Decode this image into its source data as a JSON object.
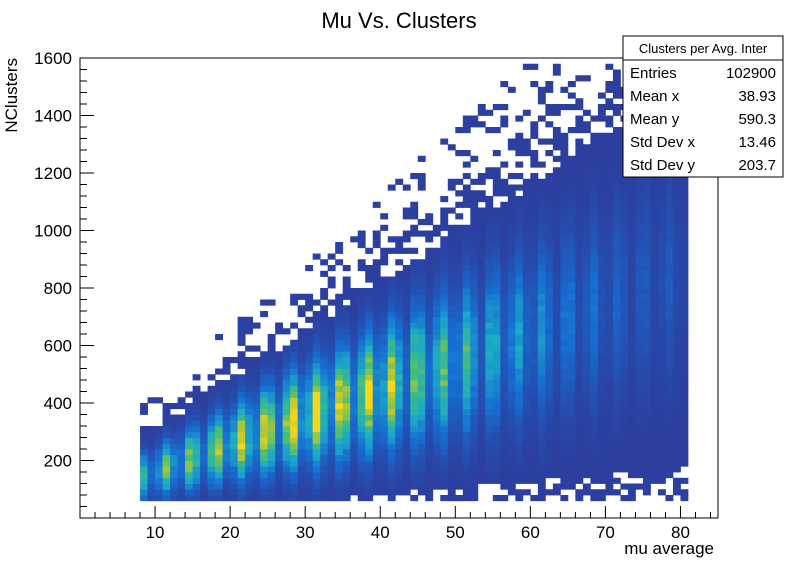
{
  "chart_data": {
    "type": "heatmap",
    "title": "Mu Vs. Clusters",
    "xlabel": "mu average",
    "ylabel": "NClusters",
    "xlim": [
      0,
      85
    ],
    "ylim": [
      0,
      1600
    ],
    "x_ticks": [
      10,
      20,
      30,
      40,
      50,
      60,
      70,
      80
    ],
    "y_ticks": [
      200,
      400,
      600,
      800,
      1000,
      1200,
      1400,
      1600
    ],
    "x_bin_width": 1,
    "y_bin_width": 20,
    "colors": {
      "background": "#ffffff",
      "low": "#2c3e9e",
      "mid": "#1b9ec3",
      "high": "#f7d21e"
    },
    "stats_box": {
      "title": "Clusters per Avg. Inter",
      "rows": [
        {
          "label": "Entries",
          "value": "102900"
        },
        {
          "label": "Mean x",
          "value": "38.93"
        },
        {
          "label": "Mean y",
          "value": "590.3"
        },
        {
          "label": "Std Dev x",
          "value": "13.46"
        },
        {
          "label": "Std Dev y",
          "value": "203.7"
        }
      ]
    }
  }
}
